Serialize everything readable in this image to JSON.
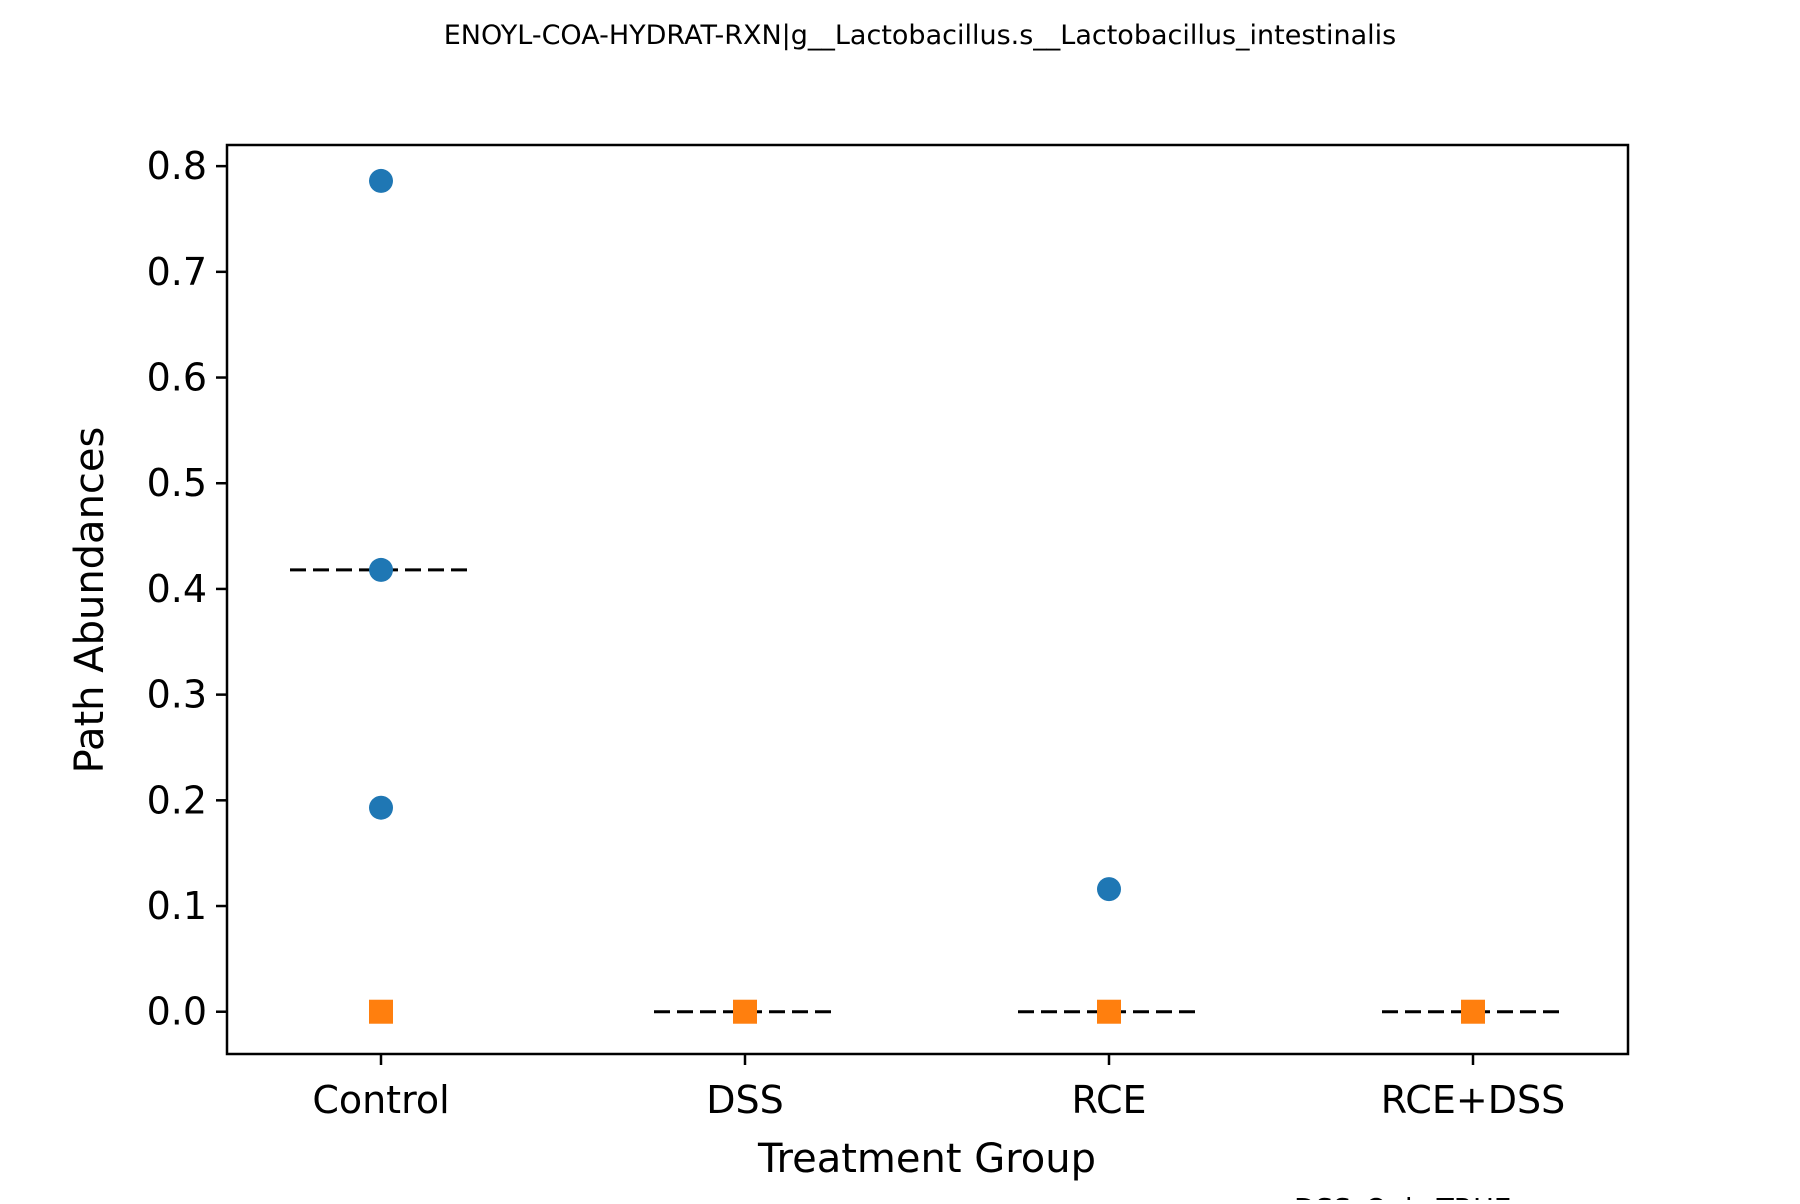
{
  "chart_data": {
    "type": "scatter",
    "title": "ENOYL-COA-HYDRAT-RXN|g__Lactobacillus.s__Lactobacillus_intestinalis",
    "xlabel": "Treatment Group",
    "ylabel": "Path Abundances",
    "categories": [
      "Control",
      "DSS",
      "RCE",
      "RCE+DSS"
    ],
    "ylim": [
      -0.04,
      0.82
    ],
    "yticks": [
      0.0,
      0.1,
      0.2,
      0.3,
      0.4,
      0.5,
      0.6,
      0.7,
      0.8
    ],
    "ytick_labels": [
      "0.0",
      "0.1",
      "0.2",
      "0.3",
      "0.4",
      "0.5",
      "0.6",
      "0.7",
      "0.8"
    ],
    "grid": false,
    "series": [
      {
        "marker": "circle",
        "color": "#1f77b4",
        "points": [
          {
            "category": "Control",
            "value": 0.786
          },
          {
            "category": "Control",
            "value": 0.418
          },
          {
            "category": "Control",
            "value": 0.193
          },
          {
            "category": "RCE",
            "value": 0.116
          }
        ]
      },
      {
        "marker": "square",
        "color": "#ff7f0e",
        "points": [
          {
            "category": "Control",
            "value": 0.0
          },
          {
            "category": "DSS",
            "value": 0.0
          },
          {
            "category": "RCE",
            "value": 0.0
          },
          {
            "category": "RCE+DSS",
            "value": 0.0
          }
        ]
      }
    ],
    "median_lines": [
      {
        "category": "Control",
        "value": 0.418
      },
      {
        "category": "DSS",
        "value": 0.0
      },
      {
        "category": "RCE",
        "value": 0.0
      },
      {
        "category": "RCE+DSS",
        "value": 0.0
      }
    ],
    "legend_text": "DSS_Only:TRUE"
  }
}
